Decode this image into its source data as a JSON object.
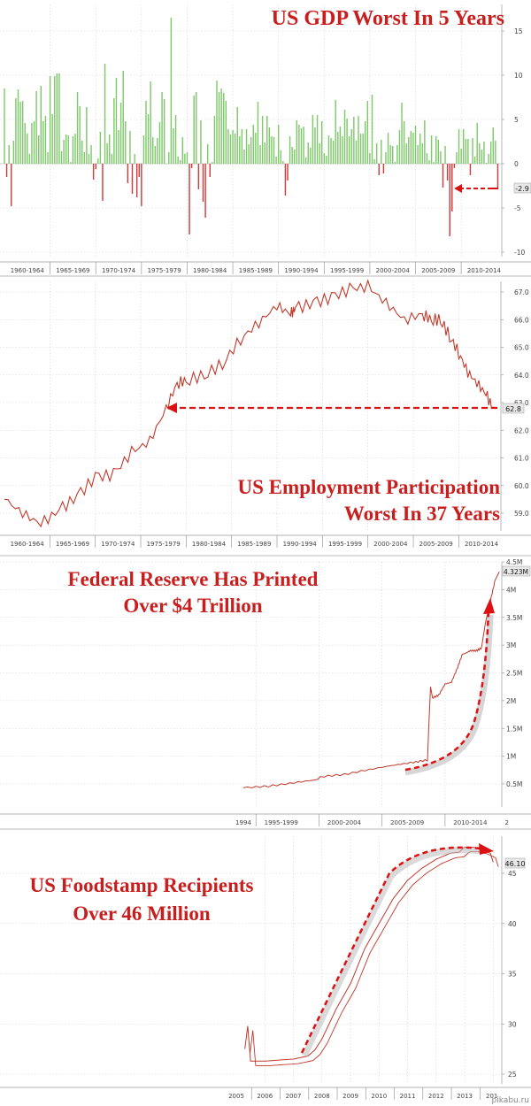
{
  "chart_data": [
    {
      "type": "bar",
      "title": "US GDP Worst In 5 Years",
      "ylim": [
        -10,
        17
      ],
      "yticks": [
        "15",
        "10",
        "5",
        "0",
        "-5",
        "-10"
      ],
      "xticks": [
        "1960-1964",
        "1965-1969",
        "1970-1974",
        "1975-1979",
        "1980-1984",
        "1985-1989",
        "1990-1994",
        "1995-1999",
        "2000-2004",
        "2005-2009",
        "2010-2014"
      ],
      "last_value_label": "-2.9",
      "x": [
        1960.0,
        1960.25,
        1960.5,
        1960.75,
        1961.0,
        1961.25,
        1961.5,
        1961.75,
        1962.0,
        1962.25,
        1962.5,
        1962.75,
        1963.0,
        1963.25,
        1963.5,
        1963.75,
        1964.0,
        1964.25,
        1964.5,
        1964.75,
        1965.0,
        1965.25,
        1965.5,
        1965.75,
        1966.0,
        1966.25,
        1966.5,
        1966.75,
        1967.0,
        1967.25,
        1967.5,
        1967.75,
        1968.0,
        1968.25,
        1968.5,
        1968.75,
        1969.0,
        1969.25,
        1969.5,
        1969.75,
        1970.0,
        1970.25,
        1970.5,
        1970.75,
        1971.0,
        1971.25,
        1971.5,
        1971.75,
        1972.0,
        1972.25,
        1972.5,
        1972.75,
        1973.0,
        1973.25,
        1973.5,
        1973.75,
        1974.0,
        1974.25,
        1974.5,
        1974.75,
        1975.0,
        1975.25,
        1975.5,
        1975.75,
        1976.0,
        1976.25,
        1976.5,
        1976.75,
        1977.0,
        1977.25,
        1977.5,
        1977.75,
        1978.0,
        1978.25,
        1978.5,
        1978.75,
        1979.0,
        1979.25,
        1979.5,
        1979.75,
        1980.0,
        1980.25,
        1980.5,
        1980.75,
        1981.0,
        1981.25,
        1981.5,
        1981.75,
        1982.0,
        1982.25,
        1982.5,
        1982.75,
        1983.0,
        1983.25,
        1983.5,
        1983.75,
        1984.0,
        1984.25,
        1984.5,
        1984.75,
        1985.0,
        1985.25,
        1985.5,
        1985.75,
        1986.0,
        1986.25,
        1986.5,
        1986.75,
        1987.0,
        1987.25,
        1987.5,
        1987.75,
        1988.0,
        1988.25,
        1988.5,
        1988.75,
        1989.0,
        1989.25,
        1989.5,
        1989.75,
        1990.0,
        1990.25,
        1990.5,
        1990.75,
        1991.0,
        1991.25,
        1991.5,
        1991.75,
        1992.0,
        1992.25,
        1992.5,
        1992.75,
        1993.0,
        1993.25,
        1993.5,
        1993.75,
        1994.0,
        1994.25,
        1994.5,
        1994.75,
        1995.0,
        1995.25,
        1995.5,
        1995.75,
        1996.0,
        1996.25,
        1996.5,
        1996.75,
        1997.0,
        1997.25,
        1997.5,
        1997.75,
        1998.0,
        1998.25,
        1998.5,
        1998.75,
        1999.0,
        1999.25,
        1999.5,
        1999.75,
        2000.0,
        2000.25,
        2000.5,
        2000.75,
        2001.0,
        2001.25,
        2001.5,
        2001.75,
        2002.0,
        2002.25,
        2002.5,
        2002.75,
        2003.0,
        2003.25,
        2003.5,
        2003.75,
        2004.0,
        2004.25,
        2004.5,
        2004.75,
        2005.0,
        2005.25,
        2005.5,
        2005.75,
        2006.0,
        2006.25,
        2006.5,
        2006.75,
        2007.0,
        2007.25,
        2007.5,
        2007.75,
        2008.0,
        2008.25,
        2008.5,
        2008.75,
        2009.0,
        2009.25,
        2009.5,
        2009.75,
        2010.0,
        2010.25,
        2010.5,
        2010.75,
        2011.0,
        2011.25,
        2011.5,
        2011.75,
        2012.0,
        2012.25,
        2012.5,
        2012.75,
        2013.0,
        2013.25,
        2013.5,
        2013.75,
        2014.0
      ],
      "values": [
        8.5,
        -1.5,
        2.1,
        -4.8,
        2.6,
        7.4,
        8.4,
        7.0,
        7.1,
        4.6,
        3.4,
        1.1,
        4.6,
        4.8,
        8.2,
        3.2,
        8.8,
        4.8,
        5.4,
        1.3,
        9.9,
        5.6,
        9.9,
        10.2,
        10.2,
        1.4,
        2.7,
        3.3,
        3.2,
        0.2,
        3.1,
        3.4,
        8.1,
        6.5,
        2.6,
        1.3,
        6.4,
        1.1,
        2.1,
        -1.8,
        -0.6,
        0.6,
        3.6,
        -4.2,
        11.3,
        2.3,
        3.3,
        1.1,
        7.4,
        9.7,
        3.8,
        6.9,
        10.5,
        4.8,
        -2.2,
        3.7,
        -3.4,
        1.1,
        -3.8,
        -1.5,
        -4.8,
        3.2,
        7.1,
        5.6,
        9.3,
        3.0,
        2.0,
        2.9,
        4.7,
        8.1,
        7.3,
        0.0,
        1.3,
        16.5,
        4.0,
        5.5,
        0.8,
        0.4,
        3.0,
        1.1,
        1.3,
        -8.0,
        -0.5,
        7.7,
        8.1,
        -2.9,
        4.9,
        -4.3,
        -6.1,
        2.2,
        -1.5,
        0.2,
        5.4,
        9.4,
        8.1,
        8.5,
        8.0,
        7.1,
        3.9,
        3.3,
        3.8,
        3.4,
        6.4,
        3.1,
        3.9,
        1.6,
        3.9,
        2.2,
        3.0,
        4.4,
        3.5,
        7.0,
        2.1,
        5.4,
        2.4,
        5.4,
        4.1,
        3.1,
        3.0,
        0.8,
        4.4,
        1.5,
        0.3,
        -3.6,
        -1.9,
        3.1,
        1.9,
        1.6,
        4.9,
        4.4,
        4.0,
        4.2,
        0.7,
        2.4,
        1.8,
        5.5,
        4.1,
        5.5,
        2.3,
        4.8,
        1.2,
        0.9,
        3.2,
        2.9,
        2.6,
        7.2,
        3.6,
        4.2,
        3.1,
        6.1,
        5.1,
        3.1,
        3.9,
        5.3,
        2.6,
        5.4,
        3.4,
        3.4,
        4.8,
        7.1,
        1.2,
        7.8,
        0.5,
        2.3,
        -1.3,
        2.7,
        -1.1,
        1.3,
        3.5,
        2.1,
        2.0,
        0.2,
        2.1,
        3.8,
        6.9,
        4.8,
        2.3,
        3.0,
        3.7,
        3.5,
        4.3,
        2.1,
        3.4,
        2.3,
        4.9,
        1.2,
        0.4,
        3.2,
        0.2,
        3.1,
        2.7,
        1.4,
        -2.7,
        2.0,
        -1.9,
        -8.2,
        -5.4,
        -0.5,
        1.3,
        3.9,
        1.7,
        3.9,
        2.8,
        2.8,
        -1.3,
        2.9,
        0.8,
        4.6,
        2.3,
        1.6,
        2.5,
        0.1,
        1.1,
        2.5,
        4.1,
        2.6,
        -2.9
      ]
    },
    {
      "type": "line",
      "title": "US Employment Participation\nWorst In 37 Years",
      "ylim": [
        58.5,
        67.5
      ],
      "yticks": [
        "67.0",
        "66.0",
        "65.0",
        "64.0",
        "63.0",
        "62.0",
        "61.0",
        "60.0",
        "59.0"
      ],
      "xticks": [
        "1960-1964",
        "1965-1969",
        "1970-1974",
        "1975-1979",
        "1980-1984",
        "1985-1989",
        "1990-1994",
        "1995-1999",
        "2000-2004",
        "2005-2009",
        "2010-2014"
      ],
      "last_value_label": "62.8",
      "x": [
        1960,
        1962,
        1964,
        1966,
        1968,
        1970,
        1972,
        1974,
        1976,
        1977.8,
        1979,
        1980,
        1982,
        1984,
        1986,
        1988,
        1990,
        1991.5,
        1992,
        1994,
        1996,
        1998,
        2000,
        2002,
        2004,
        2006,
        2007,
        2008,
        2009,
        2010,
        2011,
        2012,
        2013,
        2013.75,
        2014
      ],
      "values": [
        59.5,
        59.0,
        58.6,
        59.1,
        59.6,
        60.3,
        60.4,
        61.2,
        61.6,
        62.8,
        63.7,
        63.8,
        64.0,
        64.4,
        65.3,
        65.9,
        66.5,
        66.2,
        66.4,
        66.6,
        66.8,
        67.1,
        67.2,
        66.6,
        66.0,
        66.2,
        66.0,
        66.0,
        65.4,
        64.8,
        64.1,
        63.7,
        63.3,
        62.8,
        62.8
      ]
    },
    {
      "type": "line",
      "title": "Federal Reserve Has Printed\nOver $4 Trillion",
      "ylim": [
        0.25,
        4.5
      ],
      "yticks": [
        "4.5M",
        "4M",
        "3.5M",
        "3M",
        "2.5M",
        "2M",
        "1.5M",
        "1M",
        "0.5M"
      ],
      "xticks": [
        "1994",
        "1995-1999",
        "2000-2004",
        "2005-2009",
        "2010-2014",
        "2"
      ],
      "last_value_label": "4.323M",
      "x": [
        1994.0,
        1996.0,
        1998.0,
        1999.9,
        2000.1,
        2002.0,
        2004.0,
        2006.0,
        2007.5,
        2008.6,
        2008.7,
        2008.85,
        2009.0,
        2009.5,
        2010.0,
        2010.5,
        2011.0,
        2011.4,
        2011.6,
        2012.0,
        2012.5,
        2012.9,
        2013.2,
        2013.6,
        2014.0,
        2014.3
      ],
      "values": [
        0.43,
        0.46,
        0.52,
        0.58,
        0.63,
        0.67,
        0.76,
        0.84,
        0.89,
        0.93,
        1.5,
        2.25,
        2.05,
        2.1,
        2.3,
        2.33,
        2.6,
        2.85,
        2.85,
        2.9,
        2.9,
        2.95,
        3.4,
        3.8,
        4.2,
        4.323
      ]
    },
    {
      "type": "line",
      "title": "US Foodstamp Recipients\nOver 46 Million",
      "ylim": [
        24.5,
        48
      ],
      "yticks": [
        "45",
        "40",
        "35",
        "30",
        "25"
      ],
      "xticks": [
        "2005",
        "2006",
        "2007",
        "2008",
        "2009",
        "2010",
        "2011",
        "2012",
        "2013",
        "201"
      ],
      "last_value_label": "46.10",
      "x": [
        2005.3,
        2005.4,
        2005.5,
        2006.0,
        2006.5,
        2007.0,
        2007.5,
        2007.75,
        2008.0,
        2008.5,
        2009.0,
        2009.5,
        2010.0,
        2010.5,
        2011.0,
        2011.5,
        2012.0,
        2012.5,
        2012.8,
        2013.0,
        2013.3,
        2013.6,
        2013.9,
        2014.0
      ],
      "values": [
        27.5,
        29.8,
        26.3,
        26.3,
        26.4,
        26.5,
        26.8,
        27.4,
        28.5,
        31.5,
        34.0,
        37.5,
        40.0,
        42.5,
        44.3,
        45.5,
        46.4,
        47.0,
        47.1,
        47.6,
        47.6,
        47.4,
        47.0,
        46.1
      ]
    }
  ],
  "watermark": "pikabu.ru",
  "colors": {
    "up": "#7ec86a",
    "down": "#d03a3a",
    "line": "#c0392b",
    "accent": "#dd1111"
  }
}
